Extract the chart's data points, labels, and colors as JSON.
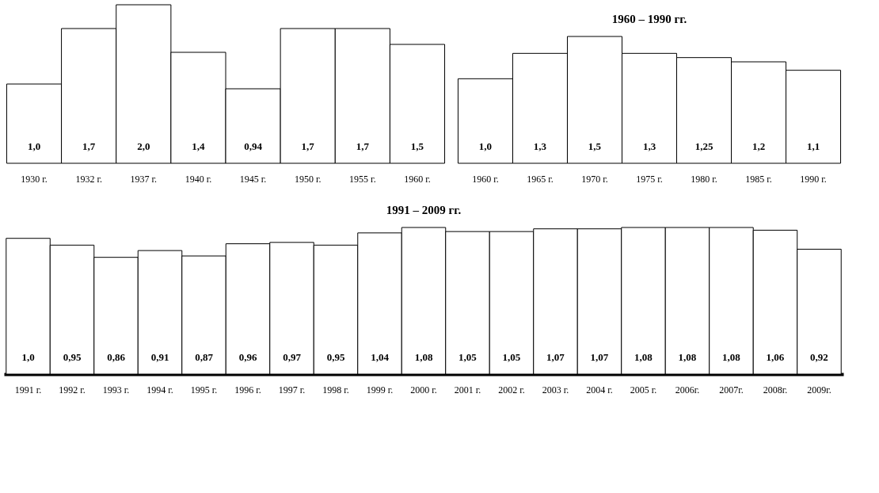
{
  "chart_data": [
    {
      "type": "bar",
      "categories": [
        "1930 г.",
        "1932 г.",
        "1937 г.",
        "1940 г.",
        "1945 г.",
        "1950 г.",
        "1955 г.",
        "1960 г."
      ],
      "values": [
        1.0,
        1.7,
        2.0,
        1.4,
        0.94,
        1.7,
        1.7,
        1.5
      ],
      "value_labels": [
        "1,0",
        "1,7",
        "2,0",
        "1,4",
        "0,94",
        "1,7",
        "1,7",
        "1,5"
      ],
      "color": "#ffffff"
    },
    {
      "type": "bar",
      "title": "1960 – 1990 гг.",
      "categories": [
        "1960 г.",
        "1965 г.",
        "1970 г.",
        "1975 г.",
        "1980 г.",
        "1985 г.",
        "1990 г."
      ],
      "values": [
        1.0,
        1.3,
        1.5,
        1.3,
        1.25,
        1.2,
        1.1
      ],
      "value_labels": [
        "1,0",
        "1,3",
        "1,5",
        "1,3",
        "1,25",
        "1,2",
        "1,1"
      ],
      "color": "#ffffff"
    },
    {
      "type": "bar",
      "title": "1991 – 2009 гг.",
      "categories": [
        "1991 г.",
        "1992 г.",
        "1993 г.",
        "1994 г.",
        "1995 г.",
        "1996 г.",
        "1997 г.",
        "1998 г.",
        "1999 г.",
        "2000 г.",
        "2001 г.",
        "2002 г.",
        "2003 г.",
        "2004 г.",
        "2005 г.",
        "2006г.",
        "2007г.",
        "2008г.",
        "2009г."
      ],
      "values": [
        1.0,
        0.95,
        0.86,
        0.91,
        0.87,
        0.96,
        0.97,
        0.95,
        1.04,
        1.08,
        1.05,
        1.05,
        1.07,
        1.07,
        1.08,
        1.08,
        1.08,
        1.06,
        0.92
      ],
      "value_labels": [
        "1,0",
        "0,95",
        "0,86",
        "0,91",
        "0,87",
        "0,96",
        "0,97",
        "0,95",
        "1,04",
        "1,08",
        "1,05",
        "1,05",
        "1,07",
        "1,07",
        "1,08",
        "1,08",
        "1,08",
        "1,06",
        "0,92"
      ],
      "color": "#ffffff"
    }
  ]
}
